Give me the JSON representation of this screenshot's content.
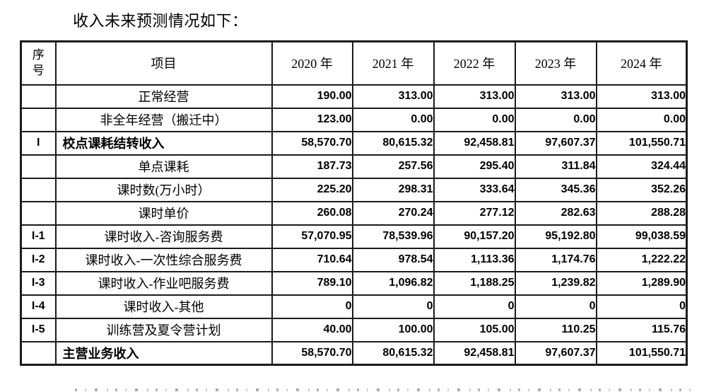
{
  "title": "收入未来预测情况如下：",
  "table": {
    "headers": {
      "seq": "序\n号",
      "item": "项目",
      "years": [
        "2020 年",
        "2021 年",
        "2022 年",
        "2023 年",
        "2024 年"
      ]
    },
    "rows": [
      {
        "seq": "",
        "item": "正常经营",
        "emphasis": false,
        "values": [
          "190.00",
          "313.00",
          "313.00",
          "313.00",
          "313.00"
        ]
      },
      {
        "seq": "",
        "item": "非全年经营（搬迁中）",
        "emphasis": false,
        "values": [
          "123.00",
          "0.00",
          "0.00",
          "0.00",
          "0.00"
        ]
      },
      {
        "seq": "I",
        "item": "校点课耗结转收入",
        "emphasis": true,
        "values": [
          "58,570.70",
          "80,615.32",
          "92,458.81",
          "97,607.37",
          "101,550.71"
        ]
      },
      {
        "seq": "",
        "item": "单点课耗",
        "emphasis": false,
        "values": [
          "187.73",
          "257.56",
          "295.40",
          "311.84",
          "324.44"
        ]
      },
      {
        "seq": "",
        "item": "课时数(万小时）",
        "emphasis": false,
        "values": [
          "225.20",
          "298.31",
          "333.64",
          "345.36",
          "352.26"
        ]
      },
      {
        "seq": "",
        "item": "课时单价",
        "emphasis": false,
        "values": [
          "260.08",
          "270.24",
          "277.12",
          "282.63",
          "288.28"
        ]
      },
      {
        "seq": "I-1",
        "item": "课时收入-咨询服务费",
        "emphasis": false,
        "values": [
          "57,070.95",
          "78,539.96",
          "90,157.20",
          "95,192.80",
          "99,038.59"
        ]
      },
      {
        "seq": "I-2",
        "item": "课时收入-一次性综合服务费",
        "emphasis": false,
        "values": [
          "710.64",
          "978.54",
          "1,113.36",
          "1,174.76",
          "1,222.22"
        ]
      },
      {
        "seq": "I-3",
        "item": "课时收入-作业吧服务费",
        "emphasis": false,
        "values": [
          "789.10",
          "1,096.82",
          "1,188.25",
          "1,239.82",
          "1,289.90"
        ]
      },
      {
        "seq": "I-4",
        "item": "课时收入-其他",
        "emphasis": false,
        "values": [
          "0",
          "0",
          "0",
          "0",
          "0"
        ]
      },
      {
        "seq": "I-5",
        "item": "训练营及夏令营计划",
        "emphasis": false,
        "values": [
          "40.00",
          "100.00",
          "105.00",
          "110.25",
          "115.76"
        ]
      },
      {
        "seq": "",
        "item": "主营业务收入",
        "emphasis": true,
        "values": [
          "58,570.70",
          "80,615.32",
          "92,458.81",
          "97,607.37",
          "101,550.71"
        ]
      }
    ]
  }
}
